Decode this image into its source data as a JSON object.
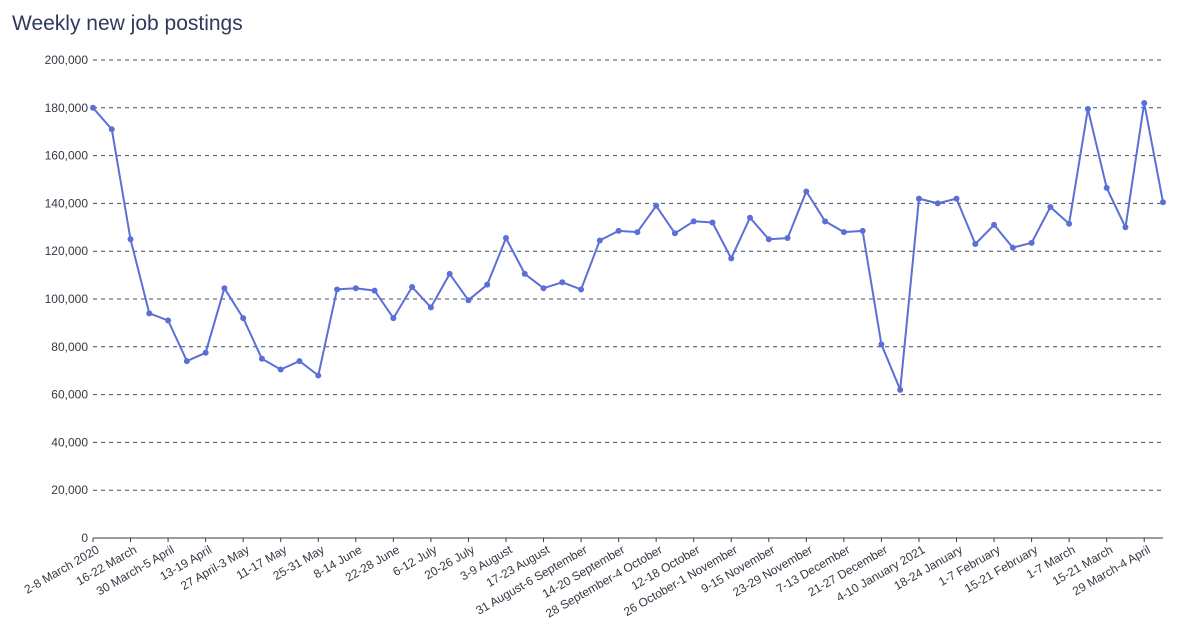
{
  "chart_data": {
    "type": "line",
    "title": "Weekly new job postings",
    "xlabel": "",
    "ylabel": "",
    "ylim": [
      0,
      200000
    ],
    "y_ticks": [
      "0",
      "20,000",
      "40,000",
      "60,000",
      "80,000",
      "100,000",
      "120,000",
      "140,000",
      "160,000",
      "180,000",
      "200,000"
    ],
    "grid": "horizontal dashed",
    "legend": "none",
    "line_color": "#5b6fd6",
    "x_tick_labels": [
      "2-8 March 2020",
      "16-22 March",
      "30 March-5 April",
      "13-19 April",
      "27 April-3 May",
      "11-17 May",
      "25-31 May",
      "8-14 June",
      "22-28 June",
      "6-12 July",
      "20-26 July",
      "3-9 August",
      "17-23 August",
      "31 August-6 September",
      "14-20 September",
      "28 September-4 October",
      "12-18 October",
      "26 October-1 November",
      "9-15 November",
      "23-29 November",
      "7-13 December",
      "21-27 December",
      "4-10 January 2021",
      "18-24 January",
      "1-7 February",
      "15-21 February",
      "1-7 March",
      "15-21 March",
      "29 March-4 April"
    ],
    "series": [
      {
        "values": [
          180000,
          171000,
          125000,
          94000,
          91000,
          74000,
          77500,
          104500,
          92000,
          75000,
          70500,
          74000,
          68000,
          104000,
          104500,
          103500,
          92000,
          105000,
          96500,
          110500,
          99500,
          106000,
          125500,
          110500,
          104500,
          107000,
          104000,
          124500,
          128500,
          128000,
          139000,
          127500,
          132500,
          132000,
          117000,
          134000,
          125000,
          125500,
          145000,
          132500,
          128000,
          128500,
          81000,
          62000,
          142000,
          140000,
          142000,
          123000,
          131000,
          121500,
          123500,
          138500,
          131500,
          179500,
          146500,
          130000,
          182000,
          140500
        ]
      }
    ]
  }
}
